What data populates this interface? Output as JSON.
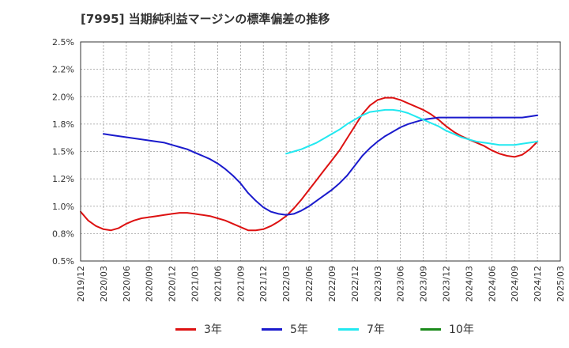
{
  "chart_data": {
    "type": "line",
    "title": "[7995]  当期純利益マージンの標準偏差の推移",
    "xlabel": "",
    "ylabel": "",
    "ylim": [
      0.5,
      2.5
    ],
    "y_ticks": [
      "0.5%",
      "0.8%",
      "1.0%",
      "1.2%",
      "1.5%",
      "1.8%",
      "2.0%",
      "2.2%",
      "2.5%"
    ],
    "y_tick_values": [
      0.5,
      0.75,
      1.0,
      1.25,
      1.5,
      1.75,
      2.0,
      2.25,
      2.5
    ],
    "x_ticks": [
      "2019/12",
      "2020/03",
      "2020/06",
      "2020/09",
      "2020/12",
      "2021/03",
      "2021/06",
      "2021/09",
      "2021/12",
      "2022/03",
      "2022/06",
      "2022/09",
      "2022/12",
      "2023/03",
      "2023/06",
      "2023/09",
      "2023/12",
      "2024/03",
      "2024/06",
      "2024/09",
      "2024/12",
      "2025/03"
    ],
    "grid": true,
    "legend_position": "bottom",
    "series": [
      {
        "name": "3年",
        "color": "#dd1111",
        "x": [
          "2019/12",
          "2020/01",
          "2020/02",
          "2020/03",
          "2020/04",
          "2020/05",
          "2020/06",
          "2020/07",
          "2020/08",
          "2020/09",
          "2020/10",
          "2020/11",
          "2020/12",
          "2021/01",
          "2021/02",
          "2021/03",
          "2021/04",
          "2021/05",
          "2021/06",
          "2021/07",
          "2021/08",
          "2021/09",
          "2021/10",
          "2021/11",
          "2021/12",
          "2022/01",
          "2022/02",
          "2022/03",
          "2022/04",
          "2022/05",
          "2022/06",
          "2022/07",
          "2022/08",
          "2022/09",
          "2022/10",
          "2022/11",
          "2022/12",
          "2023/01",
          "2023/02",
          "2023/03",
          "2023/04",
          "2023/05",
          "2023/06",
          "2023/07",
          "2023/08",
          "2023/09",
          "2023/10",
          "2023/11",
          "2023/12",
          "2024/01",
          "2024/02",
          "2024/03",
          "2024/04",
          "2024/05",
          "2024/06",
          "2024/07",
          "2024/08",
          "2024/09",
          "2024/10",
          "2024/11",
          "2024/12"
        ],
        "values": [
          0.95,
          0.87,
          0.82,
          0.79,
          0.78,
          0.8,
          0.84,
          0.87,
          0.89,
          0.9,
          0.91,
          0.92,
          0.93,
          0.94,
          0.94,
          0.93,
          0.92,
          0.91,
          0.89,
          0.87,
          0.84,
          0.81,
          0.78,
          0.78,
          0.79,
          0.82,
          0.86,
          0.91,
          0.98,
          1.06,
          1.15,
          1.24,
          1.33,
          1.42,
          1.51,
          1.62,
          1.73,
          1.84,
          1.92,
          1.97,
          1.99,
          1.99,
          1.97,
          1.94,
          1.91,
          1.88,
          1.84,
          1.79,
          1.73,
          1.68,
          1.64,
          1.61,
          1.58,
          1.55,
          1.51,
          1.48,
          1.46,
          1.45,
          1.47,
          1.52,
          1.59
        ]
      },
      {
        "name": "5年",
        "color": "#1a1acc",
        "x": [
          "2020/03",
          "2020/04",
          "2020/05",
          "2020/06",
          "2020/07",
          "2020/08",
          "2020/09",
          "2020/10",
          "2020/11",
          "2020/12",
          "2021/01",
          "2021/02",
          "2021/03",
          "2021/04",
          "2021/05",
          "2021/06",
          "2021/07",
          "2021/08",
          "2021/09",
          "2021/10",
          "2021/11",
          "2021/12",
          "2022/01",
          "2022/02",
          "2022/03",
          "2022/04",
          "2022/05",
          "2022/06",
          "2022/07",
          "2022/08",
          "2022/09",
          "2022/10",
          "2022/11",
          "2022/12",
          "2023/01",
          "2023/02",
          "2023/03",
          "2023/04",
          "2023/05",
          "2023/06",
          "2023/07",
          "2023/08",
          "2023/09",
          "2023/10",
          "2023/11",
          "2023/12",
          "2024/01",
          "2024/02",
          "2024/03",
          "2024/04",
          "2024/05",
          "2024/06",
          "2024/07",
          "2024/08",
          "2024/09",
          "2024/10",
          "2024/11",
          "2024/12"
        ],
        "values": [
          1.66,
          1.65,
          1.64,
          1.63,
          1.62,
          1.61,
          1.6,
          1.59,
          1.58,
          1.56,
          1.54,
          1.52,
          1.49,
          1.46,
          1.43,
          1.39,
          1.34,
          1.28,
          1.21,
          1.12,
          1.05,
          0.99,
          0.95,
          0.93,
          0.92,
          0.93,
          0.96,
          1.0,
          1.05,
          1.1,
          1.15,
          1.21,
          1.28,
          1.37,
          1.46,
          1.53,
          1.59,
          1.64,
          1.68,
          1.72,
          1.75,
          1.77,
          1.79,
          1.8,
          1.81,
          1.81,
          1.81,
          1.81,
          1.81,
          1.81,
          1.81,
          1.81,
          1.81,
          1.81,
          1.81,
          1.81,
          1.82,
          1.83
        ]
      },
      {
        "name": "7年",
        "color": "#22e8f0",
        "x": [
          "2022/03",
          "2022/04",
          "2022/05",
          "2022/06",
          "2022/07",
          "2022/08",
          "2022/09",
          "2022/10",
          "2022/11",
          "2022/12",
          "2023/01",
          "2023/02",
          "2023/03",
          "2023/04",
          "2023/05",
          "2023/06",
          "2023/07",
          "2023/08",
          "2023/09",
          "2023/10",
          "2023/11",
          "2023/12",
          "2024/01",
          "2024/02",
          "2024/03",
          "2024/04",
          "2024/05",
          "2024/06",
          "2024/07",
          "2024/08",
          "2024/09",
          "2024/10",
          "2024/11",
          "2024/12"
        ],
        "values": [
          1.48,
          1.5,
          1.52,
          1.55,
          1.58,
          1.62,
          1.66,
          1.7,
          1.75,
          1.79,
          1.83,
          1.86,
          1.87,
          1.88,
          1.88,
          1.87,
          1.85,
          1.82,
          1.79,
          1.76,
          1.73,
          1.69,
          1.66,
          1.63,
          1.61,
          1.59,
          1.58,
          1.57,
          1.56,
          1.56,
          1.56,
          1.57,
          1.58,
          1.59
        ]
      },
      {
        "name": "10年",
        "color": "#1a8a1a",
        "x": [],
        "values": []
      }
    ]
  }
}
